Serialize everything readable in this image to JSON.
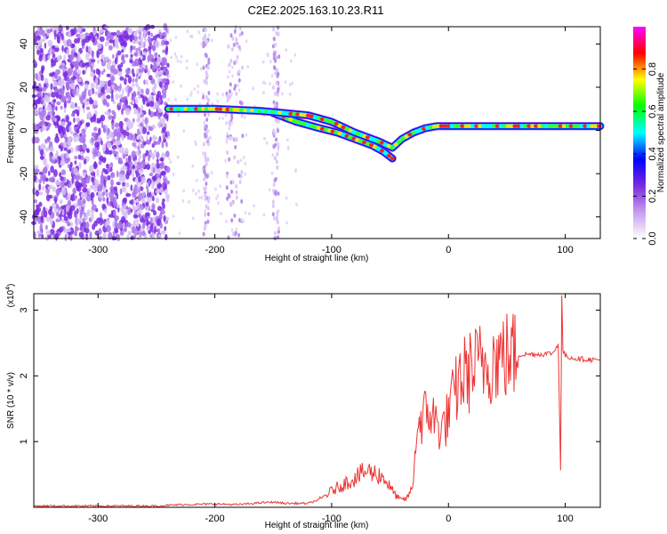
{
  "page_title": "C2E2.2025.163.10.23.R11",
  "chart_data": [
    {
      "type": "heatmap",
      "title": "C2E2.2025.163.10.23.R11",
      "xlabel": "Height of straight line (km)",
      "ylabel": "Frequency (Hz)",
      "xlim": [
        -355,
        130
      ],
      "ylim": [
        -50,
        48
      ],
      "xticks": [
        -300,
        -200,
        -100,
        0,
        100
      ],
      "yticks": [
        -40,
        -20,
        0,
        20,
        40
      ],
      "colorbar": {
        "label": "Normalized spectral amplitude",
        "range": [
          0,
          1
        ],
        "ticks": [
          0.0,
          0.2,
          0.4,
          0.6,
          0.8
        ],
        "colormap": [
          "#ffffff",
          "#c59cf0",
          "#7a2ae0",
          "#0000ff",
          "#00ffff",
          "#00ff00",
          "#ffff00",
          "#ff0000",
          "#ff00ff"
        ]
      },
      "signal_track": {
        "height_km": [
          -240,
          -200,
          -160,
          -140,
          -120,
          -100,
          -80,
          -60,
          -48,
          -40,
          -30,
          -20,
          -10,
          0,
          20,
          60,
          90,
          130
        ],
        "frequency_hz": [
          10,
          10,
          9,
          8,
          7,
          4,
          -1,
          -5,
          -8,
          -4,
          -1,
          1,
          2,
          2,
          2,
          2,
          2,
          2
        ]
      },
      "lower_branch": {
        "height_km": [
          -150,
          -130,
          -110,
          -95,
          -80,
          -65,
          -55,
          -48
        ],
        "frequency_hz": [
          8,
          4,
          1,
          -1,
          -4,
          -7,
          -10,
          -13
        ]
      },
      "noise_region_km": [
        -355,
        -240
      ],
      "colors": {
        "track_core": "#ff0000",
        "track_edge": "#0000ff",
        "noise": "#7a2ae0"
      }
    },
    {
      "type": "line",
      "xlabel": "Height of straight line (km)",
      "ylabel": "SNR (10 * v/v)",
      "yscale_label": "(x10",
      "yscale_exp": "4",
      "xlim": [
        -355,
        130
      ],
      "ylim": [
        0,
        3.25
      ],
      "xticks": [
        -300,
        -200,
        -100,
        0,
        100
      ],
      "yticks": [
        1,
        2,
        3
      ],
      "series": [
        {
          "color": "#ee3333",
          "x": [
            -355,
            -250,
            -230,
            -200,
            -180,
            -160,
            -150,
            -140,
            -120,
            -110,
            -100,
            -90,
            -80,
            -70,
            -60,
            -55,
            -50,
            -45,
            -40,
            -35,
            -30,
            -28,
            -25,
            -20,
            -15,
            -10,
            -5,
            0,
            5,
            10,
            20,
            30,
            40,
            50,
            60,
            70,
            80,
            90,
            94,
            96,
            97,
            98,
            100,
            110,
            120,
            130
          ],
          "y": [
            0.02,
            0.02,
            0.04,
            0.05,
            0.04,
            0.07,
            0.08,
            0.06,
            0.06,
            0.12,
            0.25,
            0.35,
            0.45,
            0.55,
            0.5,
            0.45,
            0.3,
            0.18,
            0.1,
            0.15,
            0.35,
            1.1,
            1.3,
            1.4,
            1.45,
            1.25,
            1.2,
            1.4,
            1.7,
            1.95,
            2.1,
            2.2,
            2.28,
            2.3,
            2.32,
            2.33,
            2.33,
            2.35,
            2.5,
            0.55,
            3.2,
            2.4,
            2.3,
            2.26,
            2.25,
            2.24
          ]
        }
      ]
    }
  ]
}
